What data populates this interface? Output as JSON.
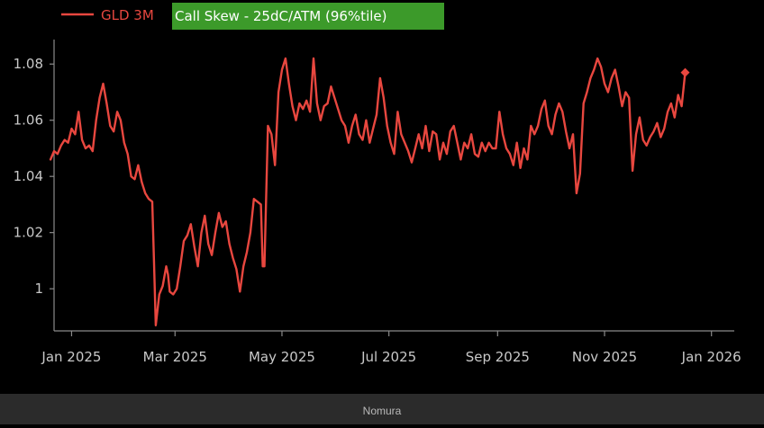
{
  "colors": {
    "background": "#000000",
    "line": "#e8473f",
    "highlight": "#3c9a2a",
    "footer_bg": "#2b2b2b"
  },
  "legend": {
    "series_label": "GLD 3M",
    "highlight_label": "Call Skew - 25dC/ATM (96%tile)"
  },
  "footer": {
    "source": "Nomura"
  },
  "chart_data": {
    "type": "line",
    "legend_position": "top-left",
    "grid": false,
    "y_ticks": [
      "1.08",
      "1.06",
      "1.04",
      "1.02",
      "1"
    ],
    "y_tick_values": [
      1.08,
      1.06,
      1.04,
      1.02,
      1.0
    ],
    "ylim": [
      0.985,
      1.09
    ],
    "x_ticks": [
      "Jan 2025",
      "Mar 2025",
      "May 2025",
      "Jul 2025",
      "Sep 2025",
      "Nov 2025",
      "Jan 2026"
    ],
    "x_tick_values": [
      0,
      59,
      120,
      181,
      243,
      304,
      365
    ],
    "xlim": [
      -10,
      378
    ],
    "series": [
      {
        "points": [
          [
            -12,
            1.046
          ],
          [
            -10,
            1.049
          ],
          [
            -8,
            1.048
          ],
          [
            -6,
            1.051
          ],
          [
            -4,
            1.053
          ],
          [
            -2,
            1.052
          ],
          [
            0,
            1.057
          ],
          [
            2,
            1.055
          ],
          [
            4,
            1.063
          ],
          [
            6,
            1.053
          ],
          [
            8,
            1.05
          ],
          [
            10,
            1.051
          ],
          [
            12,
            1.049
          ],
          [
            14,
            1.06
          ],
          [
            16,
            1.068
          ],
          [
            18,
            1.073
          ],
          [
            20,
            1.066
          ],
          [
            22,
            1.058
          ],
          [
            24,
            1.056
          ],
          [
            26,
            1.063
          ],
          [
            28,
            1.06
          ],
          [
            30,
            1.052
          ],
          [
            32,
            1.048
          ],
          [
            34,
            1.04
          ],
          [
            36,
            1.039
          ],
          [
            38,
            1.044
          ],
          [
            40,
            1.038
          ],
          [
            42,
            1.034
          ],
          [
            44,
            1.032
          ],
          [
            46,
            1.031
          ],
          [
            47,
            1.01
          ],
          [
            48,
            0.987
          ],
          [
            50,
            0.998
          ],
          [
            52,
            1.001
          ],
          [
            54,
            1.008
          ],
          [
            55,
            1.005
          ],
          [
            56,
            0.999
          ],
          [
            58,
            0.998
          ],
          [
            60,
            1.0
          ],
          [
            62,
            1.008
          ],
          [
            64,
            1.017
          ],
          [
            66,
            1.019
          ],
          [
            68,
            1.023
          ],
          [
            70,
            1.015
          ],
          [
            72,
            1.008
          ],
          [
            74,
            1.02
          ],
          [
            76,
            1.026
          ],
          [
            78,
            1.016
          ],
          [
            80,
            1.012
          ],
          [
            82,
            1.02
          ],
          [
            84,
            1.027
          ],
          [
            86,
            1.022
          ],
          [
            88,
            1.024
          ],
          [
            90,
            1.016
          ],
          [
            92,
            1.011
          ],
          [
            94,
            1.007
          ],
          [
            96,
            0.999
          ],
          [
            98,
            1.008
          ],
          [
            100,
            1.013
          ],
          [
            102,
            1.02
          ],
          [
            104,
            1.032
          ],
          [
            106,
            1.031
          ],
          [
            108,
            1.03
          ],
          [
            109,
            1.008
          ],
          [
            110,
            1.008
          ],
          [
            112,
            1.058
          ],
          [
            114,
            1.055
          ],
          [
            116,
            1.044
          ],
          [
            118,
            1.07
          ],
          [
            120,
            1.078
          ],
          [
            122,
            1.082
          ],
          [
            124,
            1.073
          ],
          [
            126,
            1.065
          ],
          [
            128,
            1.06
          ],
          [
            130,
            1.066
          ],
          [
            132,
            1.064
          ],
          [
            134,
            1.067
          ],
          [
            136,
            1.063
          ],
          [
            138,
            1.082
          ],
          [
            140,
            1.066
          ],
          [
            142,
            1.06
          ],
          [
            144,
            1.065
          ],
          [
            146,
            1.066
          ],
          [
            148,
            1.072
          ],
          [
            150,
            1.068
          ],
          [
            152,
            1.064
          ],
          [
            154,
            1.06
          ],
          [
            156,
            1.058
          ],
          [
            158,
            1.052
          ],
          [
            160,
            1.058
          ],
          [
            162,
            1.062
          ],
          [
            164,
            1.055
          ],
          [
            166,
            1.053
          ],
          [
            168,
            1.06
          ],
          [
            170,
            1.052
          ],
          [
            172,
            1.057
          ],
          [
            174,
            1.062
          ],
          [
            176,
            1.075
          ],
          [
            178,
            1.068
          ],
          [
            180,
            1.058
          ],
          [
            182,
            1.052
          ],
          [
            184,
            1.048
          ],
          [
            186,
            1.063
          ],
          [
            188,
            1.055
          ],
          [
            190,
            1.052
          ],
          [
            192,
            1.049
          ],
          [
            194,
            1.045
          ],
          [
            196,
            1.05
          ],
          [
            198,
            1.055
          ],
          [
            200,
            1.05
          ],
          [
            202,
            1.058
          ],
          [
            204,
            1.049
          ],
          [
            206,
            1.056
          ],
          [
            208,
            1.055
          ],
          [
            210,
            1.046
          ],
          [
            212,
            1.052
          ],
          [
            214,
            1.048
          ],
          [
            216,
            1.056
          ],
          [
            218,
            1.058
          ],
          [
            220,
            1.052
          ],
          [
            222,
            1.046
          ],
          [
            224,
            1.052
          ],
          [
            226,
            1.05
          ],
          [
            228,
            1.055
          ],
          [
            230,
            1.048
          ],
          [
            232,
            1.047
          ],
          [
            234,
            1.052
          ],
          [
            236,
            1.049
          ],
          [
            238,
            1.052
          ],
          [
            240,
            1.05
          ],
          [
            242,
            1.05
          ],
          [
            244,
            1.063
          ],
          [
            246,
            1.055
          ],
          [
            248,
            1.05
          ],
          [
            250,
            1.048
          ],
          [
            252,
            1.044
          ],
          [
            254,
            1.052
          ],
          [
            256,
            1.043
          ],
          [
            258,
            1.05
          ],
          [
            260,
            1.046
          ],
          [
            262,
            1.058
          ],
          [
            264,
            1.055
          ],
          [
            266,
            1.058
          ],
          [
            268,
            1.064
          ],
          [
            270,
            1.067
          ],
          [
            272,
            1.058
          ],
          [
            274,
            1.055
          ],
          [
            276,
            1.062
          ],
          [
            278,
            1.066
          ],
          [
            280,
            1.063
          ],
          [
            282,
            1.056
          ],
          [
            284,
            1.05
          ],
          [
            286,
            1.055
          ],
          [
            288,
            1.034
          ],
          [
            290,
            1.041
          ],
          [
            292,
            1.066
          ],
          [
            294,
            1.07
          ],
          [
            296,
            1.075
          ],
          [
            298,
            1.078
          ],
          [
            300,
            1.082
          ],
          [
            302,
            1.079
          ],
          [
            304,
            1.073
          ],
          [
            306,
            1.07
          ],
          [
            308,
            1.075
          ],
          [
            310,
            1.078
          ],
          [
            312,
            1.072
          ],
          [
            314,
            1.065
          ],
          [
            316,
            1.07
          ],
          [
            318,
            1.068
          ],
          [
            320,
            1.042
          ],
          [
            322,
            1.055
          ],
          [
            324,
            1.061
          ],
          [
            326,
            1.053
          ],
          [
            328,
            1.051
          ],
          [
            330,
            1.054
          ],
          [
            332,
            1.056
          ],
          [
            334,
            1.059
          ],
          [
            336,
            1.054
          ],
          [
            338,
            1.057
          ],
          [
            340,
            1.063
          ],
          [
            342,
            1.066
          ],
          [
            344,
            1.061
          ],
          [
            346,
            1.069
          ],
          [
            348,
            1.065
          ],
          [
            350,
            1.077
          ]
        ]
      }
    ],
    "end_marker": [
      350,
      1.077
    ]
  }
}
